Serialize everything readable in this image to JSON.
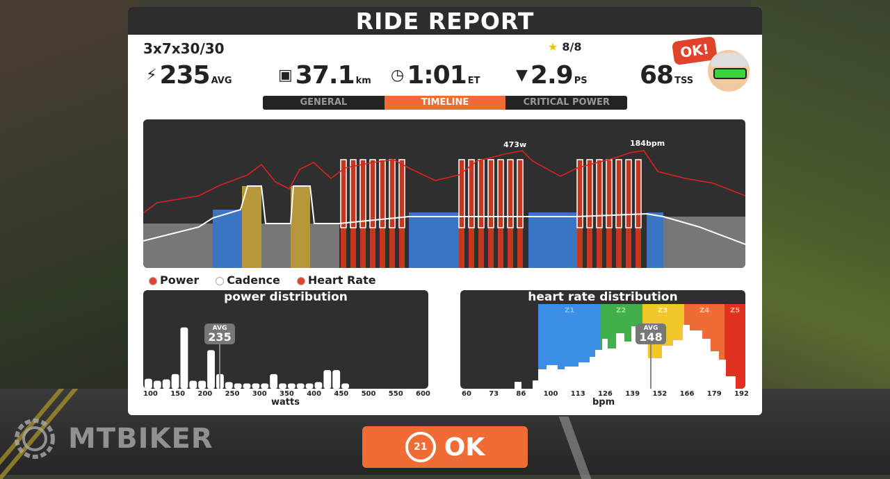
{
  "header": {
    "title": "RIDE REPORT"
  },
  "workout": {
    "name": "3x7x30/30",
    "stars": "8/8"
  },
  "stats": {
    "power": {
      "icon": "lightning-icon",
      "value": "235",
      "unit": "AVG"
    },
    "distance": {
      "icon": "odometer-icon",
      "value": "37.1",
      "unit": "km"
    },
    "time": {
      "icon": "clock-icon",
      "value": "1:01",
      "unit": "ET"
    },
    "pizza": {
      "icon": "pizza-icon",
      "value": "2.9",
      "unit": "PS"
    },
    "tss": {
      "value": "68",
      "unit": "TSS"
    }
  },
  "badge": {
    "text": "OK!"
  },
  "tabs": [
    {
      "label": "GENERAL",
      "active": false
    },
    {
      "label": "TIMELINE",
      "active": true
    },
    {
      "label": "CRITICAL POWER",
      "active": false
    }
  ],
  "timeline": {
    "peak_power_label": "473w",
    "peak_hr_label": "184bpm"
  },
  "legend": [
    {
      "label": "Power",
      "color": "#e0422b"
    },
    {
      "label": "Cadence",
      "color": "#ffffff"
    },
    {
      "label": "Heart Rate",
      "color": "#e0422b"
    }
  ],
  "power_distribution": {
    "title": "power distribution",
    "avg_label": "AVG",
    "avg_value": "235",
    "xlabel": "watts",
    "ticks": [
      "100",
      "150",
      "200",
      "250",
      "300",
      "350",
      "400",
      "450",
      "500",
      "550",
      "600"
    ],
    "bars": [
      0.15,
      0.12,
      0.14,
      0.22,
      0.92,
      0.12,
      0.12,
      0.58,
      0.22,
      0.1,
      0.08,
      0.08,
      0.08,
      0.08,
      0.22,
      0.08,
      0.08,
      0.08,
      0.08,
      0.1,
      0.28,
      0.28,
      0.08
    ]
  },
  "hr_distribution": {
    "title": "heart rate distribution",
    "avg_label": "AVG",
    "avg_value": "148",
    "xlabel": "bpm",
    "ticks": [
      "60",
      "73",
      "86",
      "100",
      "113",
      "126",
      "139",
      "152",
      "166",
      "179",
      "192"
    ],
    "zones": [
      {
        "label": "Z1",
        "color": "#3a8ee6"
      },
      {
        "label": "Z2",
        "color": "#41b04a"
      },
      {
        "label": "Z3",
        "color": "#f2c72b"
      },
      {
        "label": "Z4",
        "color": "#f06c36"
      },
      {
        "label": "Z5",
        "color": "#e0301e"
      }
    ]
  },
  "ok_button": {
    "countdown": "21",
    "label": "OK"
  },
  "watermark": {
    "text": "MTBIKER"
  }
}
